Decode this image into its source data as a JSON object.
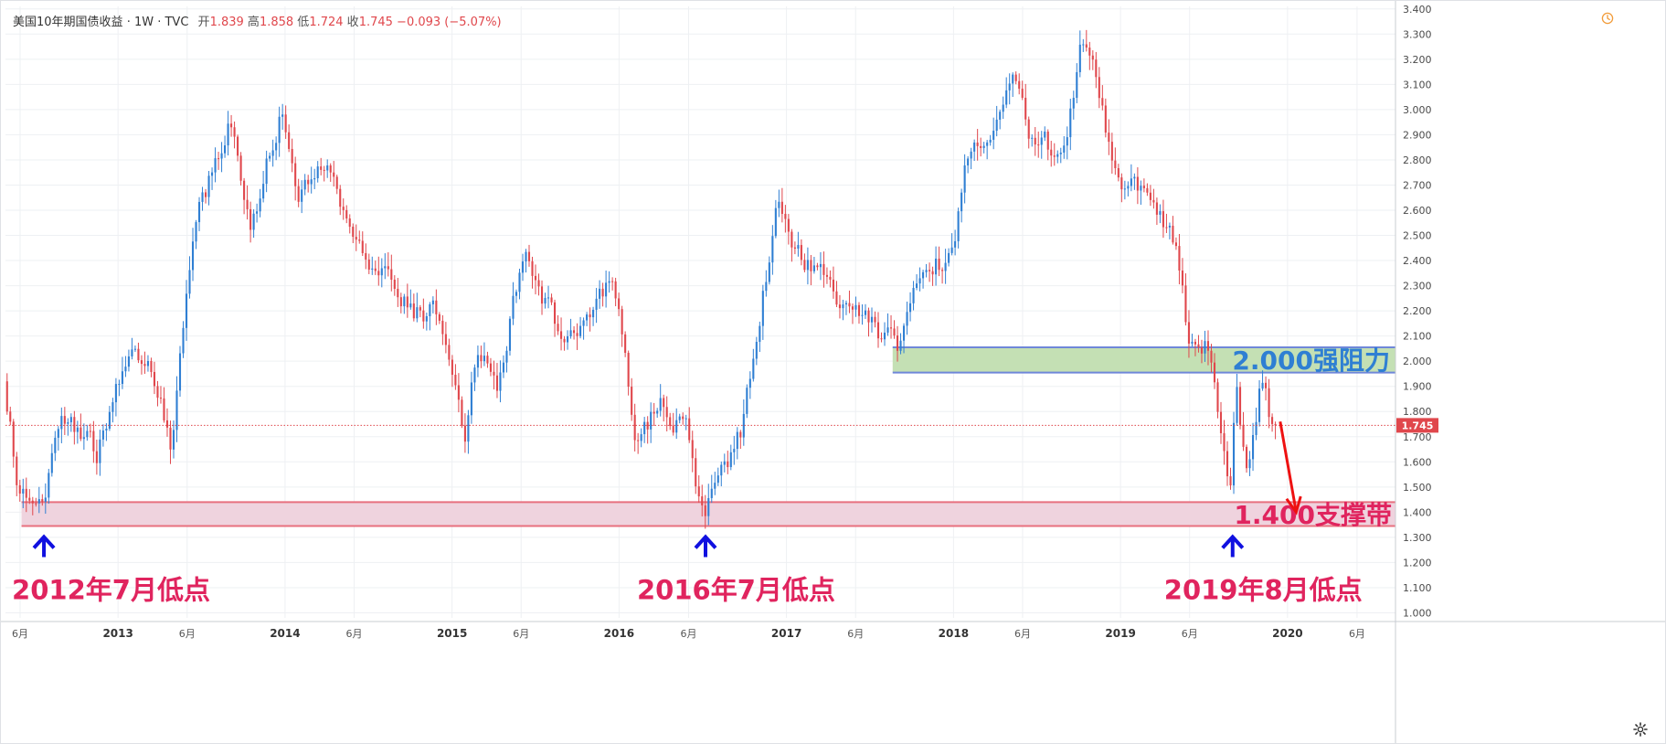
{
  "header": {
    "symbol": "美国10年期国债收益",
    "interval": "1W",
    "source": "TVC",
    "open_label": "开",
    "open": "1.839",
    "high_label": "高",
    "high": "1.858",
    "low_label": "低",
    "low": "1.724",
    "close_label": "收",
    "close": "1.745",
    "change": "−0.093",
    "change_pct": "(−5.07%)"
  },
  "colors": {
    "up": "#2f7fd3",
    "down": "#e0474c",
    "resistance_fill": "#c4e0b4",
    "resistance_border": "#6f87d9",
    "support_fill": "#efd3de",
    "support_border": "#e8707f",
    "annotation_text": "#e0245e",
    "resistance_text": "#2f7fd3",
    "arrow_blue": "#1010e0",
    "arrow_red": "#ee1111",
    "last_price_tag": "#e0474c"
  },
  "chart_data": {
    "type": "candlestick",
    "title": "美国10年期国债收益 · 1W · TVC",
    "timeframe": "1W",
    "x_ticks": [
      "6月",
      "2013",
      "6月",
      "2014",
      "6月",
      "2015",
      "6月",
      "2016",
      "6月",
      "2017",
      "6月",
      "2018",
      "6月",
      "2019",
      "6月",
      "2020",
      "6月"
    ],
    "y_ticks": [
      "3.400",
      "3.300",
      "3.200",
      "3.100",
      "3.000",
      "2.900",
      "2.800",
      "2.700",
      "2.600",
      "2.500",
      "2.400",
      "2.300",
      "2.200",
      "2.100",
      "2.000",
      "1.900",
      "1.800",
      "1.700",
      "1.600",
      "1.500",
      "1.400",
      "1.300",
      "1.200",
      "1.100",
      "1.000"
    ],
    "ylim": [
      0.98,
      3.41
    ],
    "xlim": [
      "2012-04-30",
      "2020-08-24"
    ],
    "last_price": "1.745",
    "price_path": [
      [
        "2012-04-30",
        1.92
      ],
      [
        "2012-05-28",
        1.55
      ],
      [
        "2012-07-23",
        1.45
      ],
      [
        "2012-09-17",
        1.8
      ],
      [
        "2012-11-19",
        1.62
      ],
      [
        "2013-01-07",
        1.95
      ],
      [
        "2013-03-11",
        2.03
      ],
      [
        "2013-05-01",
        1.65
      ],
      [
        "2013-05-27",
        2.15
      ],
      [
        "2013-07-01",
        2.6
      ],
      [
        "2013-09-02",
        2.95
      ],
      [
        "2013-10-21",
        2.55
      ],
      [
        "2013-12-30",
        3.02
      ],
      [
        "2014-02-03",
        2.65
      ],
      [
        "2014-04-01",
        2.75
      ],
      [
        "2014-06-01",
        2.55
      ],
      [
        "2014-08-01",
        2.35
      ],
      [
        "2014-10-15",
        2.2
      ],
      [
        "2014-12-01",
        2.2
      ],
      [
        "2015-01-31",
        1.68
      ],
      [
        "2015-03-01",
        2.05
      ],
      [
        "2015-04-15",
        1.92
      ],
      [
        "2015-06-10",
        2.45
      ],
      [
        "2015-08-01",
        2.2
      ],
      [
        "2015-10-01",
        2.05
      ],
      [
        "2015-11-20",
        2.3
      ],
      [
        "2016-01-01",
        2.27
      ],
      [
        "2016-02-10",
        1.7
      ],
      [
        "2016-04-01",
        1.82
      ],
      [
        "2016-06-01",
        1.7
      ],
      [
        "2016-07-08",
        1.37
      ],
      [
        "2016-08-20",
        1.55
      ],
      [
        "2016-10-01",
        1.75
      ],
      [
        "2016-11-15",
        2.3
      ],
      [
        "2016-12-15",
        2.6
      ],
      [
        "2017-02-01",
        2.45
      ],
      [
        "2017-04-01",
        2.3
      ],
      [
        "2017-06-15",
        2.15
      ],
      [
        "2017-09-08",
        2.05
      ],
      [
        "2017-10-20",
        2.35
      ],
      [
        "2017-12-29",
        2.41
      ],
      [
        "2018-02-10",
        2.85
      ],
      [
        "2018-05-17",
        3.1
      ],
      [
        "2018-07-01",
        2.85
      ],
      [
        "2018-09-01",
        2.85
      ],
      [
        "2018-10-08",
        3.23
      ],
      [
        "2018-11-15",
        3.08
      ],
      [
        "2019-01-01",
        2.66
      ],
      [
        "2019-03-01",
        2.7
      ],
      [
        "2019-05-01",
        2.5
      ],
      [
        "2019-06-01",
        2.1
      ],
      [
        "2019-07-15",
        2.05
      ],
      [
        "2019-09-03",
        1.46
      ],
      [
        "2019-09-13",
        1.88
      ],
      [
        "2019-10-08",
        1.53
      ],
      [
        "2019-11-08",
        1.94
      ],
      [
        "2019-12-02",
        1.745
      ]
    ]
  },
  "zones": {
    "resistance": {
      "from": 1.955,
      "to": 2.055,
      "start": "2017-08-21",
      "label": "2.000强阻力"
    },
    "support": {
      "from": 1.345,
      "to": 1.44,
      "start": "2012-06-04",
      "label": "1.400支撑带"
    }
  },
  "annotations": [
    {
      "label": "2012年7月低点",
      "date": "2012-07-23"
    },
    {
      "label": "2016年7月低点",
      "date": "2016-07-08"
    },
    {
      "label": "2019年8月低点",
      "date": "2019-09-03"
    }
  ],
  "forecast_arrow": {
    "from_date": "2019-12-16",
    "from_value": 1.76,
    "to_date": "2020-01-20",
    "to_value": 1.4
  }
}
